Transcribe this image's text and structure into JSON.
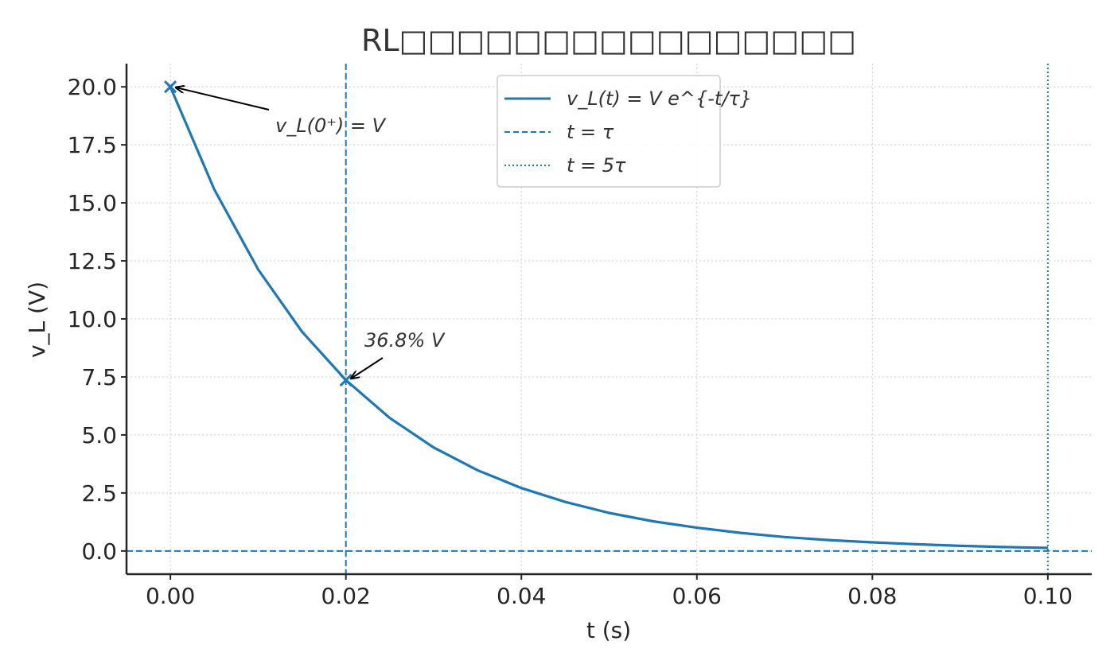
{
  "chart_data": {
    "type": "line",
    "title": "RL□□□□□□□□□□□□□□□□",
    "xlabel": "t (s)",
    "ylabel": "v_L (V)",
    "xlim": [
      -0.005,
      0.105
    ],
    "ylim": [
      -1.0,
      21.0
    ],
    "x_ticks": [
      "0.00",
      "0.02",
      "0.04",
      "0.06",
      "0.08",
      "0.10"
    ],
    "x_tick_values": [
      0,
      0.02,
      0.04,
      0.06,
      0.08,
      0.1
    ],
    "y_ticks": [
      "0.0",
      "2.5",
      "5.0",
      "7.5",
      "10.0",
      "12.5",
      "15.0",
      "17.5",
      "20.0"
    ],
    "y_tick_values": [
      0,
      2.5,
      5.0,
      7.5,
      10.0,
      12.5,
      15.0,
      17.5,
      20.0
    ],
    "grid": true,
    "legend_position": "top-center",
    "series": [
      {
        "name": "v_L(t) = V e^{-t/τ}",
        "color": "#1f77b4",
        "style": "solid",
        "x": [
          0,
          0.005,
          0.01,
          0.015,
          0.02,
          0.025,
          0.03,
          0.035,
          0.04,
          0.045,
          0.05,
          0.055,
          0.06,
          0.065,
          0.07,
          0.075,
          0.08,
          0.085,
          0.09,
          0.095,
          0.1
        ],
        "y": [
          20.0,
          15.58,
          12.13,
          9.45,
          7.36,
          5.73,
          4.46,
          3.48,
          2.71,
          2.11,
          1.64,
          1.28,
          1.0,
          0.78,
          0.6,
          0.47,
          0.37,
          0.29,
          0.22,
          0.17,
          0.13
        ]
      }
    ],
    "reference_lines": [
      {
        "name": "t = τ",
        "orientation": "vertical",
        "value": 0.02,
        "style": "dashed",
        "color": "#1f77b4"
      },
      {
        "name": "t = 5τ",
        "orientation": "vertical",
        "value": 0.1,
        "style": "dotted",
        "color": "#1f77b4"
      },
      {
        "orientation": "horizontal",
        "value": 0.0,
        "style": "dashed",
        "color": "#1f77b4"
      }
    ],
    "markers": [
      {
        "x": 0.0,
        "y": 20.0,
        "symbol": "x"
      },
      {
        "x": 0.02,
        "y": 7.36,
        "symbol": "x"
      }
    ],
    "annotations": [
      {
        "text": "v_L(0⁺) = V",
        "x": 0.0,
        "y": 20.0
      },
      {
        "text": "36.8% V",
        "x": 0.02,
        "y": 7.36
      }
    ],
    "legend": [
      {
        "label": "v_L(t) = V e^{-t/τ}",
        "style": "solid"
      },
      {
        "label": "t = τ",
        "style": "dashed"
      },
      {
        "label": "t = 5τ",
        "style": "dotted"
      }
    ]
  }
}
